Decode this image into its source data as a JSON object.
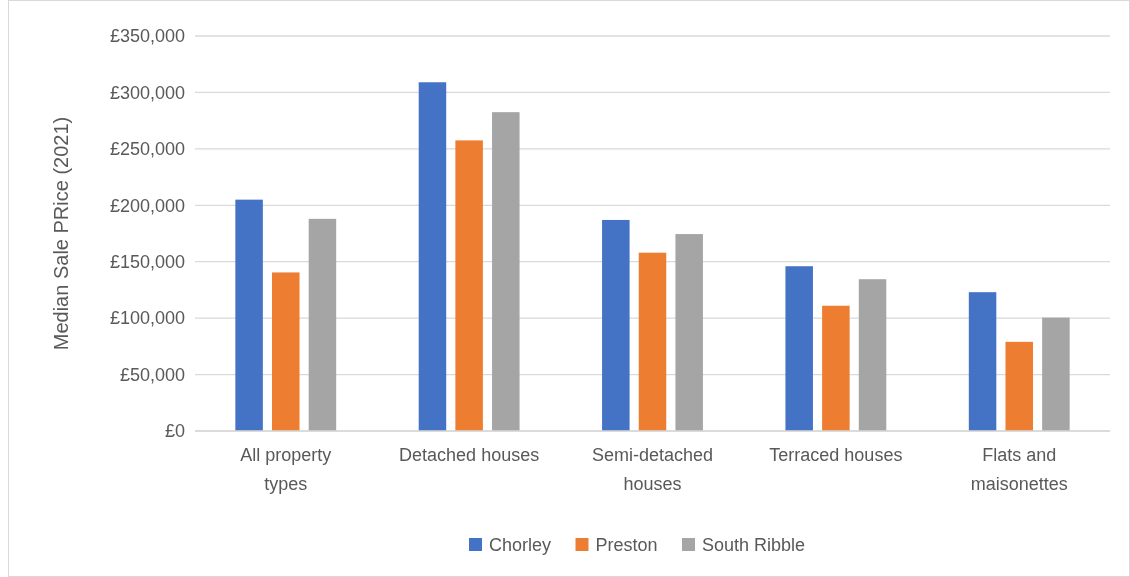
{
  "chart_data": {
    "type": "bar",
    "ylabel": "Median Sale PRice (2021)",
    "categories": [
      "All property types",
      "Detached houses",
      "Semi-detached houses",
      "Terraced houses",
      "Flats and maisonettes"
    ],
    "series": [
      {
        "name": "Chorley",
        "color": "#4472c4",
        "values": [
          205000,
          309000,
          187000,
          146000,
          123000
        ]
      },
      {
        "name": "Preston",
        "color": "#ed7d31",
        "values": [
          140500,
          257500,
          158000,
          111000,
          79000
        ]
      },
      {
        "name": "South Ribble",
        "color": "#a5a5a5",
        "values": [
          188000,
          282500,
          174500,
          134500,
          100500
        ]
      }
    ],
    "ylim": [
      0,
      350000
    ],
    "yticks": [
      {
        "value": 0,
        "label": "£0"
      },
      {
        "value": 50000,
        "label": "£50,000"
      },
      {
        "value": 100000,
        "label": "£100,000"
      },
      {
        "value": 150000,
        "label": "£150,000"
      },
      {
        "value": 200000,
        "label": "£200,000"
      },
      {
        "value": 250000,
        "label": "£250,000"
      },
      {
        "value": 300000,
        "label": "£300,000"
      },
      {
        "value": 350000,
        "label": "£350,000"
      }
    ],
    "grid": "y",
    "legend": "bottom"
  }
}
